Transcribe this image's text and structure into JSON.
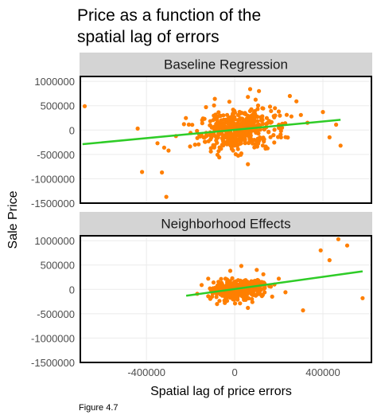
{
  "title_lines": [
    "Price as a function of the",
    "spatial lag of errors"
  ],
  "figure_caption": "Figure 4.7",
  "colors": {
    "point": "#ff7f00",
    "line": "#2ecc27",
    "strip": "#d4d4d4",
    "frame": "#000000",
    "grid": "#ebebeb"
  },
  "chart_data": {
    "type": "scatter",
    "xlabel": "Spatial lag of price errors",
    "ylabel": "Sale Price",
    "x_ticks": [
      -400000,
      0,
      400000
    ],
    "x_tick_labels": [
      "-400000",
      "0",
      "400000"
    ],
    "y_ticks": [
      1000000,
      500000,
      0,
      -500000,
      -1000000,
      -1500000
    ],
    "y_tick_labels": [
      "1000000",
      "500000",
      "0",
      "-500000",
      "-1000000",
      "-1500000"
    ],
    "xlim": [
      -700000,
      620000
    ],
    "ylim": [
      -1500000,
      1100000
    ],
    "grid": true,
    "facets": [
      {
        "name": "Baseline Regression",
        "fit_line": {
          "x": [
            -690000,
            480000
          ],
          "y": [
            -290000,
            210000
          ]
        },
        "cluster": {
          "n": 470,
          "x_center": 10000,
          "x_spread": 85000,
          "y_center": 0,
          "y_spread": 200000
        },
        "points": [
          [
            -680000,
            490000
          ],
          [
            -440000,
            30000
          ],
          [
            -350000,
            -270000
          ],
          [
            -320000,
            -360000
          ],
          [
            -300000,
            -420000
          ],
          [
            -420000,
            -860000
          ],
          [
            -330000,
            -870000
          ],
          [
            -310000,
            -1370000
          ],
          [
            70000,
            840000
          ],
          [
            60000,
            680000
          ],
          [
            110000,
            800000
          ],
          [
            -90000,
            640000
          ],
          [
            250000,
            700000
          ],
          [
            280000,
            590000
          ],
          [
            160000,
            480000
          ],
          [
            200000,
            380000
          ],
          [
            300000,
            310000
          ],
          [
            330000,
            150000
          ],
          [
            400000,
            370000
          ],
          [
            430000,
            -150000
          ],
          [
            460000,
            110000
          ],
          [
            480000,
            -320000
          ],
          [
            210000,
            -150000
          ],
          [
            -180000,
            -300000
          ],
          [
            -230000,
            120000
          ],
          [
            -70000,
            -560000
          ],
          [
            30000,
            -480000
          ],
          [
            60000,
            -700000
          ],
          [
            -130000,
            470000
          ],
          [
            140000,
            -380000
          ]
        ]
      },
      {
        "name": "Neighborhood Effects",
        "fit_line": {
          "x": [
            -220000,
            580000
          ],
          "y": [
            -130000,
            370000
          ]
        },
        "cluster": {
          "n": 470,
          "x_center": 20000,
          "x_spread": 55000,
          "y_center": 0,
          "y_spread": 85000
        },
        "points": [
          [
            470000,
            1030000
          ],
          [
            510000,
            900000
          ],
          [
            390000,
            800000
          ],
          [
            430000,
            600000
          ],
          [
            580000,
            -180000
          ],
          [
            310000,
            -430000
          ],
          [
            200000,
            220000
          ],
          [
            170000,
            -150000
          ],
          [
            -170000,
            -90000
          ],
          [
            -150000,
            90000
          ],
          [
            100000,
            400000
          ],
          [
            60000,
            -380000
          ],
          [
            -80000,
            -300000
          ],
          [
            30000,
            480000
          ],
          [
            130000,
            310000
          ],
          [
            -120000,
            220000
          ],
          [
            230000,
            -60000
          ],
          [
            80000,
            -260000
          ],
          [
            -20000,
            380000
          ],
          [
            180000,
            100000
          ]
        ]
      }
    ]
  }
}
